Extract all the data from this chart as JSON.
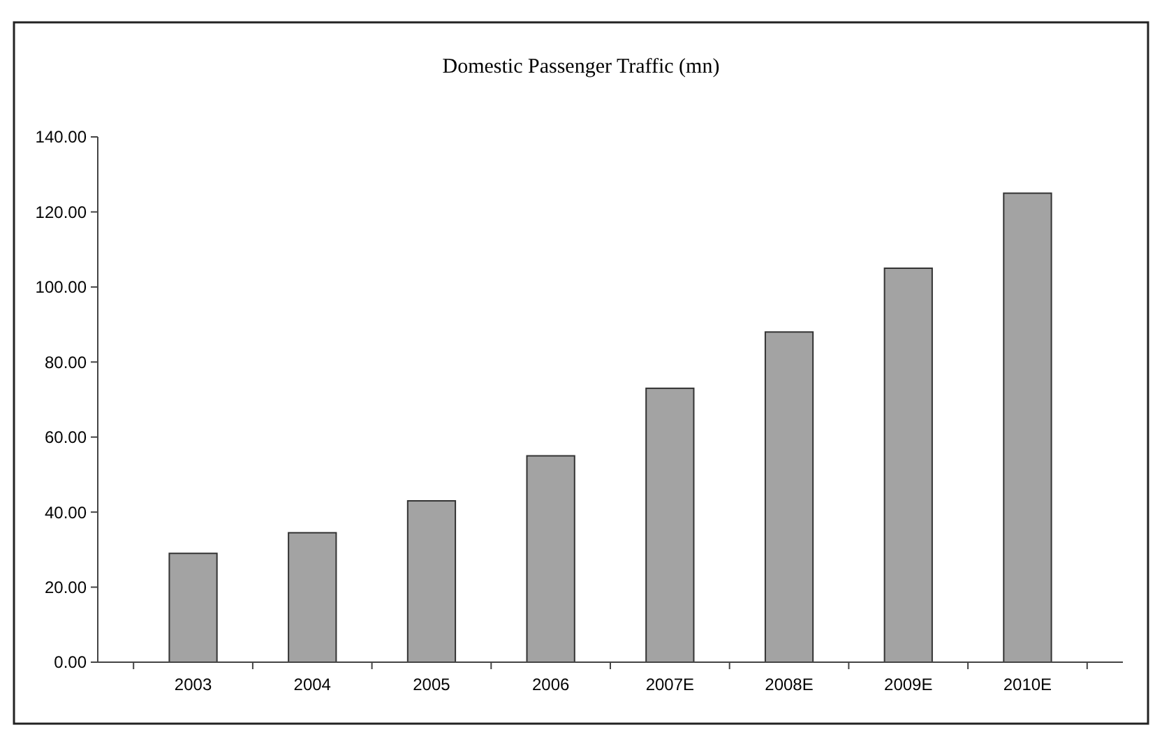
{
  "chart_data": {
    "type": "bar",
    "title": "Domestic Passenger Traffic (mn)",
    "categories": [
      "2003",
      "2004",
      "2005",
      "2006",
      "2007E",
      "2008E",
      "2009E",
      "2010E"
    ],
    "values": [
      29,
      34.5,
      43,
      55,
      73,
      88,
      105,
      125
    ],
    "color": "#a3a3a3",
    "ylim": [
      0,
      140
    ],
    "yticks": [
      {
        "value": 0,
        "label": "0.00"
      },
      {
        "value": 20,
        "label": "20.00"
      },
      {
        "value": 40,
        "label": "40.00"
      },
      {
        "value": 60,
        "label": "60.00"
      },
      {
        "value": 80,
        "label": "80.00"
      },
      {
        "value": 100,
        "label": "100.00"
      },
      {
        "value": 120,
        "label": "120.00"
      },
      {
        "value": 140,
        "label": "140.00"
      }
    ],
    "grid": false
  }
}
